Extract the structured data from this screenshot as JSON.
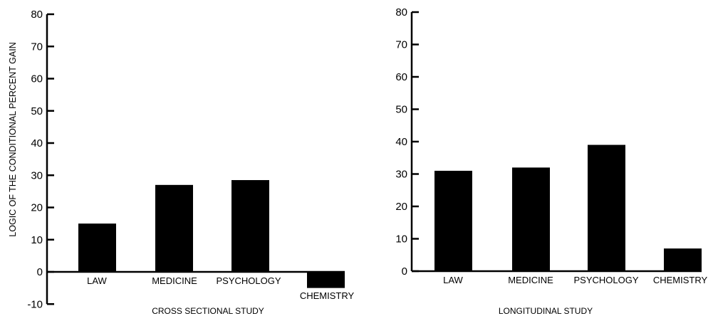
{
  "ylabel": "LOGIC OF THE CONDITIONAL  PERCENT GAIN",
  "chart_data": [
    {
      "type": "bar",
      "title": "",
      "xlabel": "CROSS SECTIONAL STUDY",
      "ylabel": "LOGIC OF THE CONDITIONAL  PERCENT GAIN",
      "categories": [
        "LAW",
        "MEDICINE",
        "PSYCHOLOGY",
        "CHEMISTRY"
      ],
      "values": [
        15,
        27,
        28.5,
        -5
      ],
      "ylim": [
        -10,
        80
      ],
      "yticks": [
        -10,
        0,
        10,
        20,
        30,
        40,
        50,
        60,
        70,
        80
      ],
      "grid": false,
      "bar_color": "#000000"
    },
    {
      "type": "bar",
      "title": "",
      "xlabel": "LONGITUDINAL  STUDY",
      "ylabel": "",
      "categories": [
        "LAW",
        "MEDICINE",
        "PSYCHOLOGY",
        "CHEMISTRY"
      ],
      "values": [
        31,
        32,
        39,
        7
      ],
      "ylim": [
        0,
        80
      ],
      "yticks": [
        0,
        10,
        20,
        30,
        40,
        50,
        60,
        70,
        80
      ],
      "grid": false,
      "bar_color": "#000000"
    }
  ]
}
